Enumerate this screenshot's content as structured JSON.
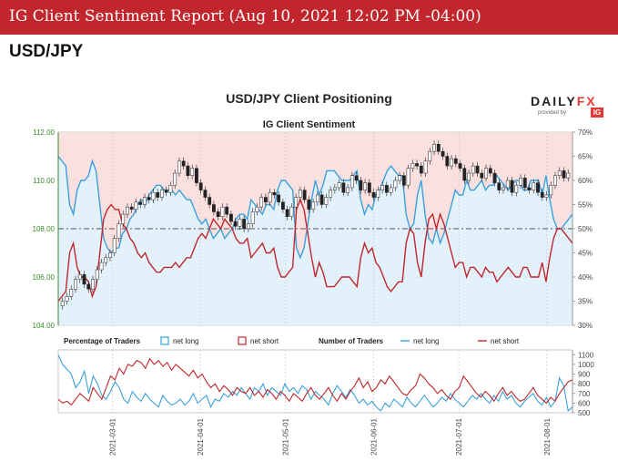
{
  "header": {
    "title": "IG Client Sentiment Report (Aug 10, 2021 12:02 PM -04:00)",
    "pair": "USD/JPY"
  },
  "brand": {
    "logo_main": "DAILY",
    "logo_fx": "FX",
    "logo_sub": "provided by",
    "logo_ig": "IG"
  },
  "colors": {
    "banner": "#c0262c",
    "net_long": "#3aa0dc",
    "net_short": "#c0262c",
    "short_fill": "#fbe0e0",
    "long_fill": "#e3f1fb",
    "price_axis": "#3a8a2a"
  },
  "chart_data": [
    {
      "type": "line",
      "title": "USD/JPY Client Positioning",
      "subtitle": "IG Client Sentiment",
      "y_price": {
        "min": 104.0,
        "max": 112.0,
        "ticks": [
          "104.00",
          "106.00",
          "108.00",
          "110.00",
          "112.00"
        ]
      },
      "y_pct": {
        "min": 30,
        "max": 70,
        "ticks": [
          "30%",
          "35%",
          "40%",
          "45%",
          "50%",
          "55%",
          "60%",
          "65%",
          "70%"
        ]
      },
      "x_dates": [
        "2021-03-01",
        "2021-04-01",
        "2021-05-01",
        "2021-06-01",
        "2021-07-01",
        "2021-08-01"
      ],
      "x_range": [
        "2021-02-10",
        "2021-08-10"
      ],
      "reference_line_pct": 50,
      "net_long_pct": [
        65,
        64,
        63,
        55,
        53,
        58,
        60,
        60,
        61,
        64,
        62,
        55,
        48,
        46,
        45,
        46,
        46,
        49,
        50,
        52,
        53,
        55,
        56,
        55,
        57,
        58,
        59,
        59,
        58,
        58,
        58,
        57,
        58,
        57,
        56,
        56,
        54,
        52,
        51,
        52,
        50,
        48,
        49,
        50,
        48,
        49,
        50,
        52,
        53,
        53,
        52,
        56,
        55,
        54,
        53,
        55,
        55,
        54,
        58,
        60,
        60,
        59,
        58,
        46,
        44,
        46,
        51,
        56,
        60,
        57,
        59,
        62,
        62,
        62,
        61,
        60,
        60,
        60,
        61,
        62,
        56,
        53,
        55,
        54,
        57,
        58,
        60,
        62,
        63,
        62,
        61,
        61,
        53,
        50,
        51,
        57,
        60,
        53,
        48,
        47,
        50,
        47,
        49,
        52,
        55,
        58,
        57,
        57,
        60,
        58,
        58,
        59,
        60,
        58,
        59,
        59,
        61,
        60,
        59,
        58,
        59,
        60,
        60,
        58,
        58,
        60,
        60,
        60,
        57,
        61,
        56,
        52,
        50,
        50,
        51,
        52,
        53
      ],
      "net_short_pct": [
        35,
        36,
        37,
        45,
        47,
        42,
        40,
        40,
        39,
        36,
        38,
        45,
        52,
        54,
        55,
        54,
        54,
        51,
        50,
        48,
        47,
        45,
        44,
        45,
        43,
        42,
        41,
        41,
        42,
        42,
        42,
        43,
        42,
        43,
        44,
        44,
        46,
        48,
        49,
        48,
        50,
        52,
        51,
        50,
        52,
        51,
        50,
        48,
        47,
        47,
        48,
        44,
        45,
        46,
        47,
        45,
        45,
        46,
        42,
        40,
        40,
        41,
        42,
        54,
        56,
        54,
        49,
        44,
        40,
        43,
        41,
        38,
        38,
        38,
        39,
        40,
        40,
        40,
        39,
        38,
        44,
        47,
        45,
        46,
        43,
        42,
        40,
        38,
        37,
        38,
        39,
        39,
        47,
        50,
        49,
        43,
        40,
        47,
        52,
        53,
        50,
        53,
        51,
        48,
        45,
        42,
        43,
        43,
        40,
        42,
        42,
        41,
        40,
        42,
        41,
        41,
        39,
        40,
        41,
        42,
        41,
        40,
        40,
        42,
        42,
        40,
        40,
        40,
        43,
        39,
        44,
        48,
        50,
        50,
        49,
        48,
        47
      ],
      "price_close": [
        105.0,
        105.2,
        105.5,
        105.9,
        106.1,
        105.7,
        105.5,
        105.9,
        106.3,
        106.6,
        106.8,
        107.0,
        107.6,
        108.2,
        108.6,
        108.9,
        108.8,
        109.1,
        109.0,
        109.3,
        109.2,
        109.5,
        109.3,
        109.6,
        109.5,
        109.8,
        110.3,
        110.8,
        110.6,
        110.2,
        110.5,
        109.9,
        109.6,
        109.3,
        109.0,
        108.7,
        108.5,
        108.9,
        108.6,
        108.3,
        108.1,
        108.4,
        108.0,
        108.2,
        108.7,
        108.9,
        109.3,
        109.1,
        109.5,
        109.4,
        109.1,
        108.8,
        108.5,
        108.9,
        109.3,
        109.6,
        109.2,
        108.8,
        109.1,
        109.4,
        109.0,
        109.3,
        109.6,
        109.7,
        109.9,
        109.5,
        109.7,
        110.2,
        110.0,
        109.6,
        109.9,
        109.5,
        109.3,
        109.6,
        109.8,
        109.5,
        109.7,
        110.0,
        110.2,
        109.8,
        110.5,
        110.7,
        110.6,
        110.3,
        110.8,
        111.2,
        111.5,
        111.2,
        111.0,
        110.6,
        110.9,
        110.7,
        110.5,
        110.0,
        110.3,
        110.6,
        110.3,
        110.1,
        110.5,
        110.3,
        109.9,
        109.6,
        109.7,
        110.0,
        109.5,
        109.8,
        110.1,
        109.7,
        109.6,
        109.9,
        109.5,
        109.3,
        109.4,
        109.8,
        110.2,
        110.4,
        110.1,
        110.3
      ],
      "volume_price_placeholder": []
    },
    {
      "type": "line",
      "title": "",
      "legend_left_label": "Percentage of Traders",
      "legend_right_label": "Number of Traders",
      "legend_net_long": "net long",
      "legend_net_short": "net short",
      "y_ticks": [
        "500",
        "600",
        "700",
        "800",
        "900",
        "1000",
        "1100"
      ],
      "y_range": [
        500,
        1150
      ],
      "net_long_count": [
        1100,
        1000,
        950,
        900,
        760,
        820,
        930,
        700,
        880,
        800,
        680,
        640,
        720,
        820,
        760,
        640,
        600,
        720,
        660,
        620,
        700,
        640,
        600,
        560,
        680,
        620,
        580,
        600,
        640,
        580,
        620,
        700,
        600,
        640,
        680,
        560,
        640,
        620,
        700,
        660,
        720,
        680,
        760,
        700,
        640,
        760,
        720,
        800,
        680,
        760,
        720,
        680,
        800,
        720,
        760,
        700,
        780,
        740,
        640,
        720,
        680,
        640,
        580,
        700,
        780,
        720,
        660,
        740,
        680,
        600,
        640,
        580,
        620,
        560,
        520,
        600,
        560,
        640,
        600,
        560,
        660,
        600,
        560,
        620,
        680,
        620,
        560,
        600,
        660,
        620,
        700,
        640,
        600,
        560,
        620,
        680,
        640,
        700,
        640,
        600,
        680,
        620,
        720,
        640,
        680,
        600,
        560,
        620,
        660,
        700,
        620,
        580,
        660,
        560,
        620,
        860,
        780,
        520,
        560
      ],
      "net_short_count": [
        640,
        600,
        620,
        580,
        640,
        700,
        660,
        620,
        760,
        700,
        640,
        760,
        880,
        840,
        960,
        900,
        1000,
        980,
        1040,
        1020,
        960,
        1060,
        1000,
        1040,
        980,
        1020,
        940,
        1000,
        960,
        920,
        880,
        940,
        860,
        900,
        820,
        760,
        800,
        720,
        780,
        740,
        680,
        760,
        720,
        700,
        760,
        680,
        720,
        660,
        740,
        700,
        640,
        720,
        680,
        620,
        700,
        660,
        620,
        700,
        760,
        680,
        640,
        700,
        760,
        680,
        620,
        700,
        640,
        720,
        780,
        860,
        760,
        820,
        720,
        760,
        840,
        800,
        880,
        820,
        760,
        700,
        680,
        740,
        780,
        900,
        860,
        800,
        760,
        700,
        740,
        680,
        640,
        720,
        760,
        880,
        820,
        760,
        700,
        660,
        720,
        680,
        620,
        700,
        760,
        680,
        720,
        660,
        620,
        640,
        700,
        760,
        680,
        640,
        600,
        660,
        620,
        700,
        760,
        820,
        840
      ]
    }
  ]
}
